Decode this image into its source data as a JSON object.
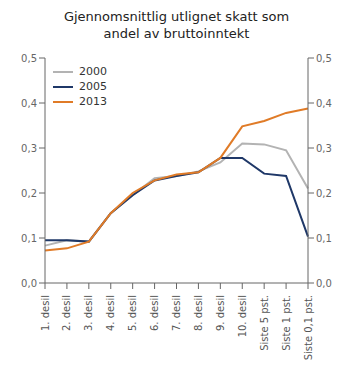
{
  "chart_data": {
    "type": "line",
    "title": "Gjennomsnittlig utlignet skatt som\nandel av bruttoinntekt",
    "categories": [
      "1. desil",
      "2. desil",
      "3. desil",
      "4. desil",
      "5. desil",
      "6. desil",
      "7. desil",
      "8. desil",
      "9. desil",
      "10. desil",
      "Siste 5 pst.",
      "Siste 1 pst.",
      "Siste 0,1 pst."
    ],
    "series": [
      {
        "name": "2000",
        "color": "#b3b3b3",
        "values": [
          0.083,
          0.095,
          0.092,
          0.155,
          0.195,
          0.233,
          0.238,
          0.248,
          0.268,
          0.31,
          0.308,
          0.295,
          0.21
        ]
      },
      {
        "name": "2005",
        "color": "#1f3868",
        "values": [
          0.095,
          0.095,
          0.092,
          0.155,
          0.195,
          0.228,
          0.238,
          0.246,
          0.278,
          0.278,
          0.243,
          0.238,
          0.103
        ]
      },
      {
        "name": "2013",
        "color": "#e07b27",
        "values": [
          0.072,
          0.077,
          0.092,
          0.155,
          0.2,
          0.228,
          0.241,
          0.246,
          0.278,
          0.348,
          0.36,
          0.378,
          0.388
        ]
      }
    ],
    "ylim": [
      0.0,
      0.5
    ],
    "yticks": [
      {
        "value": 0.0,
        "label": "0,0"
      },
      {
        "value": 0.1,
        "label": "0,1"
      },
      {
        "value": 0.2,
        "label": "0,2"
      },
      {
        "value": 0.3,
        "label": "0,3"
      },
      {
        "value": 0.4,
        "label": "0,4"
      },
      {
        "value": 0.5,
        "label": "0,5"
      }
    ],
    "y2lim": [
      0.0,
      0.5
    ],
    "y2ticks": [
      {
        "value": 0.0,
        "label": "0,0"
      },
      {
        "value": 0.1,
        "label": "0,1"
      },
      {
        "value": 0.2,
        "label": "0,2"
      },
      {
        "value": 0.3,
        "label": "0,3"
      },
      {
        "value": 0.4,
        "label": "0,4"
      },
      {
        "value": 0.5,
        "label": "0,5"
      }
    ],
    "grid": false,
    "legend": "upper left"
  }
}
